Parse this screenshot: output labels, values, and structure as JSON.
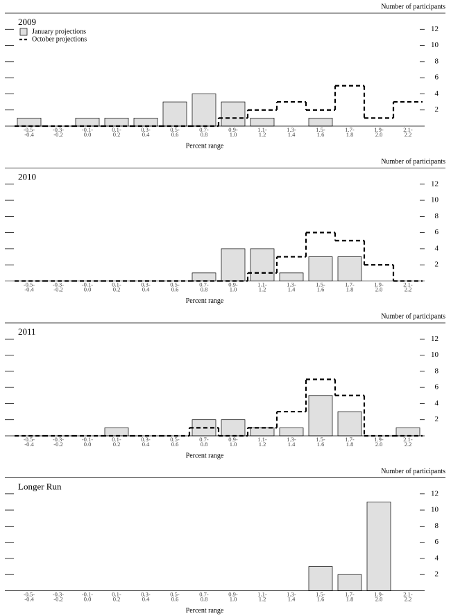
{
  "chart_data": [
    {
      "type": "bar",
      "title": "2009",
      "y_label": "Number of participants",
      "x_label": "Percent range",
      "categories": [
        [
          "-0.5-",
          "-0.4"
        ],
        [
          "-0.3-",
          "-0.2"
        ],
        [
          "-0.1-",
          "0.0"
        ],
        [
          "0.1-",
          "0.2"
        ],
        [
          "0.3-",
          "0.4"
        ],
        [
          "0.5-",
          "0.6"
        ],
        [
          "0.7-",
          "0.8"
        ],
        [
          "0.9-",
          "1.0"
        ],
        [
          "1.1-",
          "1.2"
        ],
        [
          "1.3-",
          "1.4"
        ],
        [
          "1.5-",
          "1.6"
        ],
        [
          "1.7-",
          "1.8"
        ],
        [
          "1.9-",
          "2.0"
        ],
        [
          "2.1-",
          "2.2"
        ]
      ],
      "series": [
        {
          "name": "January projections",
          "color": "#e0e0e0",
          "style": "bar",
          "values": [
            1,
            0,
            1,
            1,
            1,
            3,
            4,
            3,
            1,
            0,
            1,
            0,
            0,
            0
          ]
        },
        {
          "name": "October projections",
          "color": "#000000",
          "style": "dashed-step",
          "values": [
            0,
            0,
            0,
            0,
            0,
            0,
            0,
            1,
            2,
            3,
            2,
            5,
            1,
            3
          ]
        }
      ],
      "ylim": [
        0,
        14
      ],
      "yticks": [
        2,
        4,
        6,
        8,
        10,
        12
      ],
      "legend": "upper left"
    },
    {
      "type": "bar",
      "title": "2010",
      "y_label": "Number of participants",
      "x_label": "Percent range",
      "categories": [
        [
          "-0.5-",
          "-0.4"
        ],
        [
          "-0.3-",
          "-0.2"
        ],
        [
          "-0.1-",
          "0.0"
        ],
        [
          "0.1-",
          "0.2"
        ],
        [
          "0.3-",
          "0.4"
        ],
        [
          "0.5-",
          "0.6"
        ],
        [
          "0.7-",
          "0.8"
        ],
        [
          "0.9-",
          "1.0"
        ],
        [
          "1.1-",
          "1.2"
        ],
        [
          "1.3-",
          "1.4"
        ],
        [
          "1.5-",
          "1.6"
        ],
        [
          "1.7-",
          "1.8"
        ],
        [
          "1.9-",
          "2.0"
        ],
        [
          "2.1-",
          "2.2"
        ]
      ],
      "series": [
        {
          "color": "#e0e0e0",
          "style": "bar",
          "values": [
            0,
            0,
            0,
            0,
            0,
            0,
            1,
            4,
            4,
            1,
            3,
            3,
            0,
            0
          ]
        },
        {
          "color": "#000000",
          "style": "dashed-step",
          "values": [
            0,
            0,
            0,
            0,
            0,
            0,
            0,
            0,
            1,
            3,
            6,
            5,
            2,
            0
          ]
        }
      ],
      "ylim": [
        0,
        14
      ],
      "yticks": [
        2,
        4,
        6,
        8,
        10,
        12
      ]
    },
    {
      "type": "bar",
      "title": "2011",
      "y_label": "Number of participants",
      "x_label": "Percent range",
      "categories": [
        [
          "-0.5-",
          "-0.4"
        ],
        [
          "-0.3-",
          "-0.2"
        ],
        [
          "-0.1-",
          "0.0"
        ],
        [
          "0.1-",
          "0.2"
        ],
        [
          "0.3-",
          "0.4"
        ],
        [
          "0.5-",
          "0.6"
        ],
        [
          "0.7-",
          "0.8"
        ],
        [
          "0.9-",
          "1.0"
        ],
        [
          "1.1-",
          "1.2"
        ],
        [
          "1.3-",
          "1.4"
        ],
        [
          "1.5-",
          "1.6"
        ],
        [
          "1.7-",
          "1.8"
        ],
        [
          "1.9-",
          "2.0"
        ],
        [
          "2.1-",
          "2.2"
        ]
      ],
      "series": [
        {
          "color": "#e0e0e0",
          "style": "bar",
          "values": [
            0,
            0,
            0,
            1,
            0,
            0,
            2,
            2,
            1,
            1,
            5,
            3,
            0,
            1
          ]
        },
        {
          "color": "#000000",
          "style": "dashed-step",
          "values": [
            0,
            0,
            0,
            0,
            0,
            0,
            1,
            0,
            1,
            3,
            7,
            5,
            0,
            0
          ]
        }
      ],
      "ylim": [
        0,
        14
      ],
      "yticks": [
        2,
        4,
        6,
        8,
        10,
        12
      ]
    },
    {
      "type": "bar",
      "title": "Longer Run",
      "y_label": "Number of participants",
      "x_label": "Percent range",
      "categories": [
        [
          "-0.5-",
          "-0.4"
        ],
        [
          "-0.3-",
          "-0.2"
        ],
        [
          "-0.1-",
          "0.0"
        ],
        [
          "0.1-",
          "0.2"
        ],
        [
          "0.3-",
          "0.4"
        ],
        [
          "0.5-",
          "0.6"
        ],
        [
          "0.7-",
          "0.8"
        ],
        [
          "0.9-",
          "1.0"
        ],
        [
          "1.1-",
          "1.2"
        ],
        [
          "1.3-",
          "1.4"
        ],
        [
          "1.5-",
          "1.6"
        ],
        [
          "1.7-",
          "1.8"
        ],
        [
          "1.9-",
          "2.0"
        ],
        [
          "2.1-",
          "2.2"
        ]
      ],
      "series": [
        {
          "color": "#e0e0e0",
          "style": "bar",
          "values": [
            0,
            0,
            0,
            0,
            0,
            0,
            0,
            0,
            0,
            0,
            3,
            2,
            11,
            0
          ]
        }
      ],
      "ylim": [
        0,
        14
      ],
      "yticks": [
        2,
        4,
        6,
        8,
        10,
        12
      ]
    }
  ]
}
